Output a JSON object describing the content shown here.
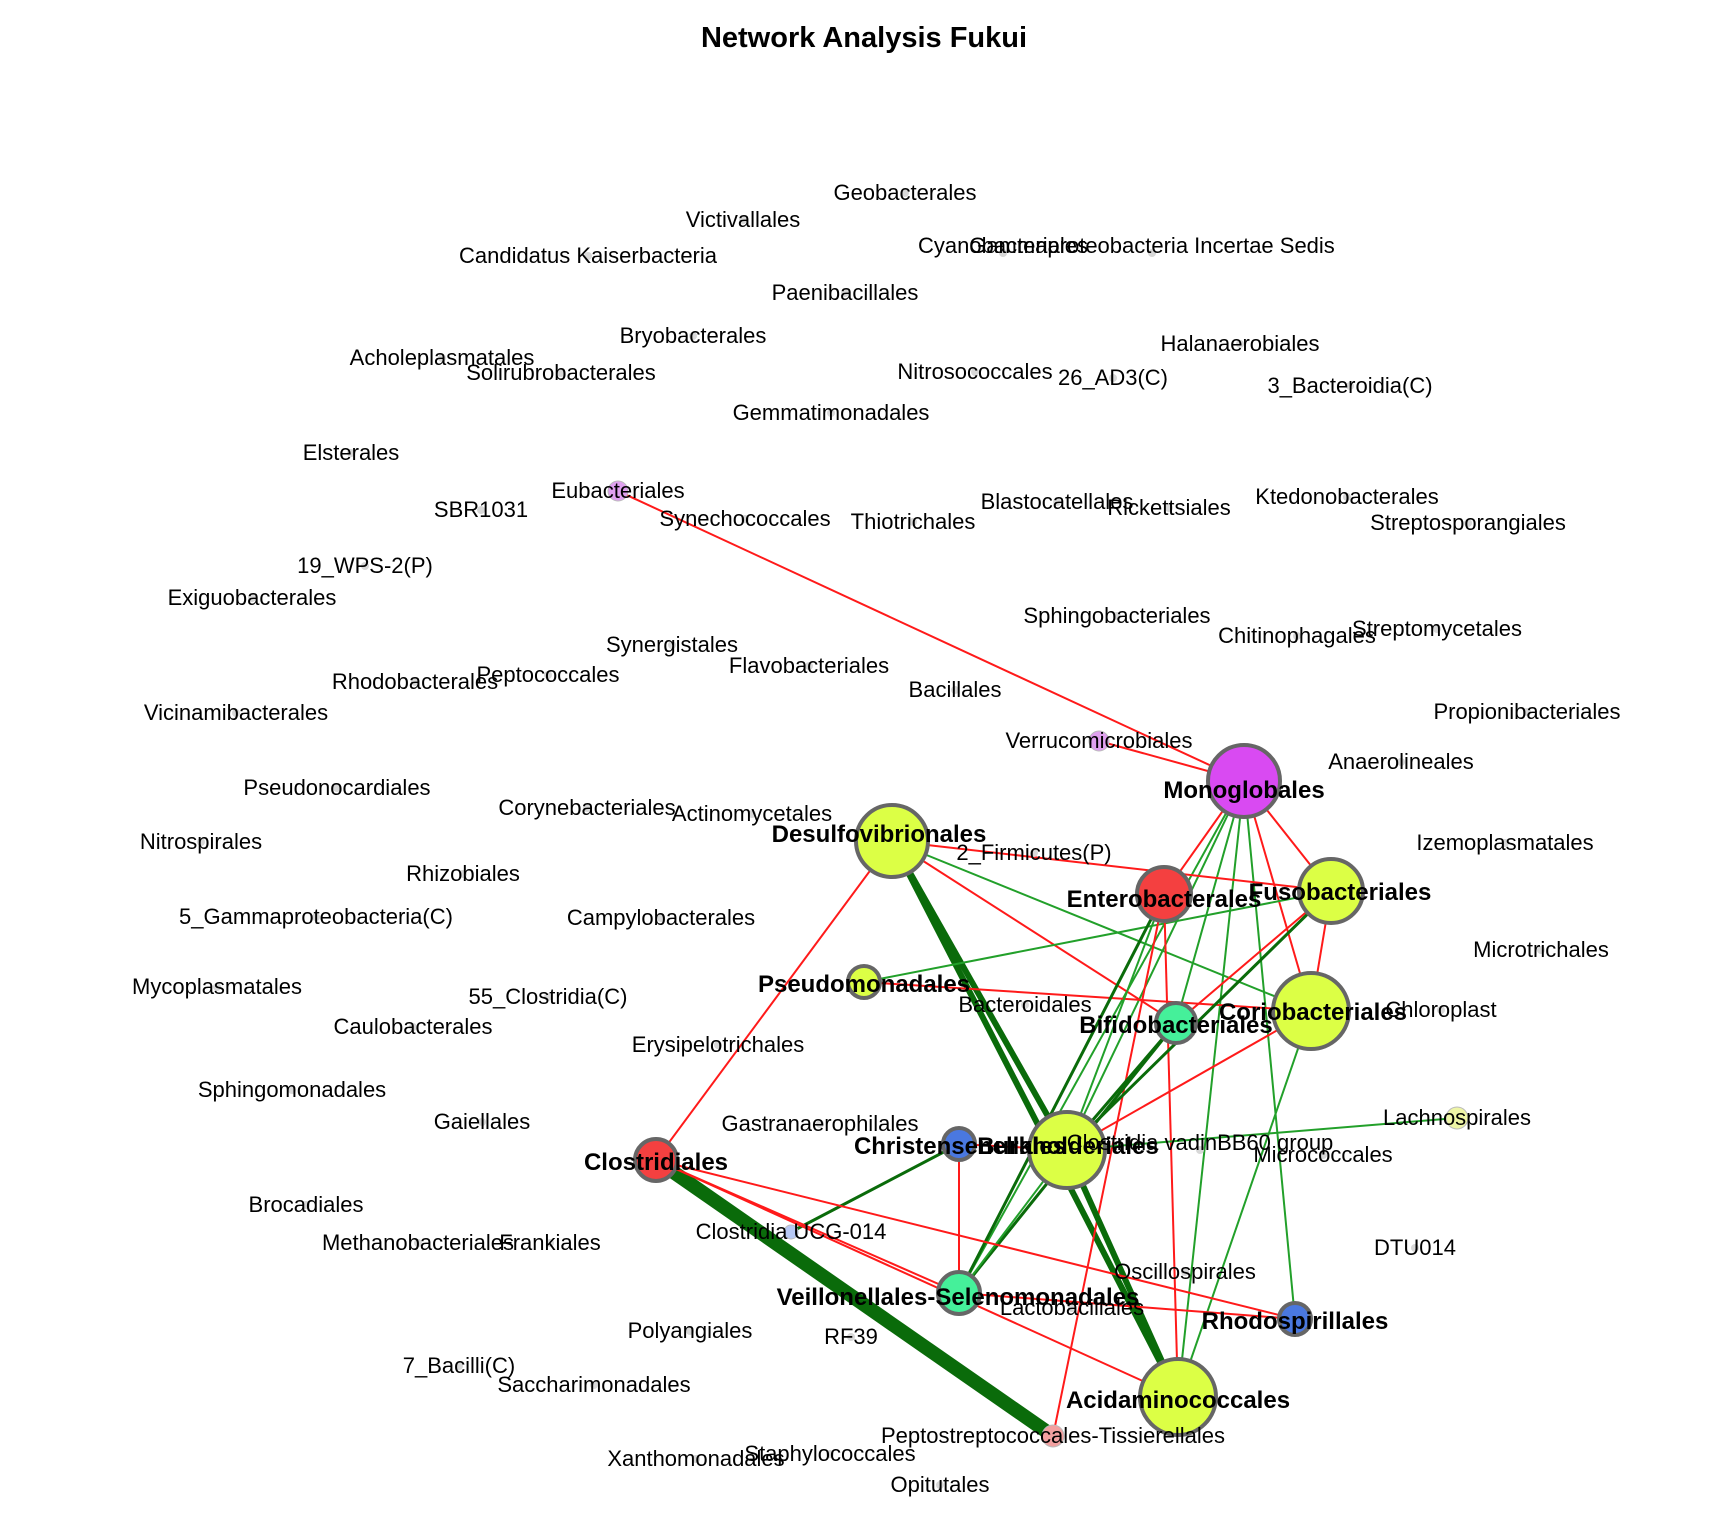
{
  "title": "Network Analysis Fukui",
  "colors": {
    "positive_edge_light": "#22a02a",
    "positive_edge_dark": "#0a6b0a",
    "negative_edge": "#ff1a1a",
    "hub_yellow": "#dcff45",
    "hub_red": "#f44040",
    "hub_green": "#45f09a",
    "hub_blue": "#4a78e0",
    "hub_purple": "#d94af2",
    "minor_node": "#d8d8d8",
    "node_outline": "#666666"
  },
  "nodes": [
    {
      "id": "Geobacterales",
      "label": "Geobacterales",
      "hub": false
    },
    {
      "id": "Victivallales",
      "label": "Victivallales",
      "hub": false
    },
    {
      "id": "Candidatus Kaiserbacteria",
      "label": "Candidatus Kaiserbacteria",
      "hub": false
    },
    {
      "id": "Cyanobacteriales",
      "label": "Cyanobacteriales",
      "hub": false
    },
    {
      "id": "Gammaproteobacteria Incertae Sedis",
      "label": "Gammaproteobacteria Incertae Sedis",
      "hub": false
    },
    {
      "id": "Paenibacillales",
      "label": "Paenibacillales",
      "hub": false
    },
    {
      "id": "Bryobacterales",
      "label": "Bryobacterales",
      "hub": false
    },
    {
      "id": "Halanaerobiales",
      "label": "Halanaerobiales",
      "hub": false
    },
    {
      "id": "Acholeplasmatales",
      "label": "Acholeplasmatales",
      "hub": false
    },
    {
      "id": "Solirubrobacterales",
      "label": "Solirubrobacterales",
      "hub": false
    },
    {
      "id": "Nitrosococcales",
      "label": "Nitrosococcales",
      "hub": false
    },
    {
      "id": "26_AD3(C)",
      "label": "26_AD3(C)",
      "hub": false
    },
    {
      "id": "3_Bacteroidia(C)",
      "label": "3_Bacteroidia(C)",
      "hub": false
    },
    {
      "id": "Gemmatimonadales",
      "label": "Gemmatimonadales",
      "hub": false
    },
    {
      "id": "Elsterales",
      "label": "Elsterales",
      "hub": false
    },
    {
      "id": "Eubacteriales",
      "label": "Eubacteriales",
      "hub": false,
      "color": "#dfa0ef"
    },
    {
      "id": "SBR1031",
      "label": "SBR1031",
      "hub": false
    },
    {
      "id": "Synechococcales",
      "label": "Synechococcales",
      "hub": false
    },
    {
      "id": "Thiotrichales",
      "label": "Thiotrichales",
      "hub": false
    },
    {
      "id": "Blastocatellales",
      "label": "Blastocatellales",
      "hub": false
    },
    {
      "id": "Rickettsiales",
      "label": "Rickettsiales",
      "hub": false
    },
    {
      "id": "Ktedonobacterales",
      "label": "Ktedonobacterales",
      "hub": false
    },
    {
      "id": "Streptosporangiales",
      "label": "Streptosporangiales",
      "hub": false
    },
    {
      "id": "19_WPS-2(P)",
      "label": "19_WPS-2(P)",
      "hub": false
    },
    {
      "id": "Exiguobacterales",
      "label": "Exiguobacterales",
      "hub": false
    },
    {
      "id": "Sphingobacteriales",
      "label": "Sphingobacteriales",
      "hub": false
    },
    {
      "id": "Chitinophagales",
      "label": "Chitinophagales",
      "hub": false
    },
    {
      "id": "Streptomycetales",
      "label": "Streptomycetales",
      "hub": false
    },
    {
      "id": "Synergistales",
      "label": "Synergistales",
      "hub": false
    },
    {
      "id": "Rhodobacterales",
      "label": "Rhodobacterales",
      "hub": false
    },
    {
      "id": "Peptococcales",
      "label": "Peptococcales",
      "hub": false
    },
    {
      "id": "Flavobacteriales",
      "label": "Flavobacteriales",
      "hub": false
    },
    {
      "id": "Bacillales",
      "label": "Bacillales",
      "hub": false
    },
    {
      "id": "Vicinamibacterales",
      "label": "Vicinamibacterales",
      "hub": false
    },
    {
      "id": "Propionibacteriales",
      "label": "Propionibacteriales",
      "hub": false
    },
    {
      "id": "Verrucomicrobiales",
      "label": "Verrucomicrobiales",
      "hub": false,
      "color": "#dfa0ef"
    },
    {
      "id": "Anaerolineales",
      "label": "Anaerolineales",
      "hub": false
    },
    {
      "id": "Pseudonocardiales",
      "label": "Pseudonocardiales",
      "hub": false
    },
    {
      "id": "Corynebacteriales",
      "label": "Corynebacteriales",
      "hub": false
    },
    {
      "id": "Actinomycetales",
      "label": "Actinomycetales",
      "hub": false
    },
    {
      "id": "Nitrospirales",
      "label": "Nitrospirales",
      "hub": false
    },
    {
      "id": "Izemoplasmatales",
      "label": "Izemoplasmatales",
      "hub": false
    },
    {
      "id": "2_Firmicutes(P)",
      "label": "2_Firmicutes(P)",
      "hub": false
    },
    {
      "id": "Rhizobiales",
      "label": "Rhizobiales",
      "hub": false
    },
    {
      "id": "5_Gammaproteobacteria(C)",
      "label": "5_Gammaproteobacteria(C)",
      "hub": false
    },
    {
      "id": "Campylobacterales",
      "label": "Campylobacterales",
      "hub": false
    },
    {
      "id": "Microtrichales",
      "label": "Microtrichales",
      "hub": false
    },
    {
      "id": "Mycoplasmatales",
      "label": "Mycoplasmatales",
      "hub": false
    },
    {
      "id": "55_Clostridia(C)",
      "label": "55_Clostridia(C)",
      "hub": false
    },
    {
      "id": "Caulobacterales",
      "label": "Caulobacterales",
      "hub": false
    },
    {
      "id": "Bacteroidales",
      "label": "Bacteroidales",
      "hub": false
    },
    {
      "id": "Chloroplast",
      "label": "Chloroplast",
      "hub": false
    },
    {
      "id": "Erysipelotrichales",
      "label": "Erysipelotrichales",
      "hub": false
    },
    {
      "id": "Sphingomonadales",
      "label": "Sphingomonadales",
      "hub": false
    },
    {
      "id": "Gaiellales",
      "label": "Gaiellales",
      "hub": false
    },
    {
      "id": "Gastranaerophilales",
      "label": "Gastranaerophilales",
      "hub": false
    },
    {
      "id": "Lachnospirales",
      "label": "Lachnospirales",
      "hub": false,
      "color": "#eef5a6"
    },
    {
      "id": "Micrococcales",
      "label": "Micrococcales",
      "hub": false
    },
    {
      "id": "Clostridia vadinBB60 group",
      "label": "Clostridia vadinBB60 group",
      "hub": false
    },
    {
      "id": "Brocadiales",
      "label": "Brocadiales",
      "hub": false
    },
    {
      "id": "Methanobacteriales",
      "label": "Methanobacteriales",
      "hub": false
    },
    {
      "id": "Frankiales",
      "label": "Frankiales",
      "hub": false
    },
    {
      "id": "Clostridia UCG-014",
      "label": "Clostridia UCG-014",
      "hub": false,
      "color": "#b7c8f4"
    },
    {
      "id": "DTU014",
      "label": "DTU014",
      "hub": false
    },
    {
      "id": "Oscillospirales",
      "label": "Oscillospirales",
      "hub": false
    },
    {
      "id": "Lactobacillales",
      "label": "Lactobacillales",
      "hub": false
    },
    {
      "id": "Polyangiales",
      "label": "Polyangiales",
      "hub": false
    },
    {
      "id": "RF39",
      "label": "RF39",
      "hub": false
    },
    {
      "id": "7_Bacilli(C)",
      "label": "7_Bacilli(C)",
      "hub": false
    },
    {
      "id": "Saccharimonadales",
      "label": "Saccharimonadales",
      "hub": false
    },
    {
      "id": "Peptostreptococcales-Tissierellales",
      "label": "Peptostreptococcales-Tissierellales",
      "hub": false,
      "color": "#f2a0a0"
    },
    {
      "id": "Xanthomonadales",
      "label": "Xanthomonadales",
      "hub": false
    },
    {
      "id": "Staphylococcales",
      "label": "Staphylococcales",
      "hub": false
    },
    {
      "id": "Opitutales",
      "label": "Opitutales",
      "hub": false
    },
    {
      "id": "Monoglobales",
      "label": "Monoglobales",
      "hub": true,
      "color": "#d94af2"
    },
    {
      "id": "Desulfovibrionales",
      "label": "Desulfovibrionales",
      "hub": true,
      "color": "#dcff45"
    },
    {
      "id": "Enterobacterales",
      "label": "Enterobacterales",
      "hub": true,
      "color": "#f44040"
    },
    {
      "id": "Fusobacteriales",
      "label": "Fusobacteriales",
      "hub": true,
      "color": "#dcff45"
    },
    {
      "id": "Pseudomonadales",
      "label": "Pseudomonadales",
      "hub": true,
      "color": "#dcff45"
    },
    {
      "id": "Coriobacteriales",
      "label": "Coriobacteriales",
      "hub": true,
      "color": "#dcff45"
    },
    {
      "id": "Bifidobacteriales",
      "label": "Bifidobacteriales",
      "hub": true,
      "color": "#45f09a"
    },
    {
      "id": "Christensenellales",
      "label": "Christensenellales",
      "hub": true,
      "color": "#4a78e0"
    },
    {
      "id": "Burkholderiales",
      "label": "Burkholderiales",
      "hub": true,
      "color": "#dcff45"
    },
    {
      "id": "Clostridiales",
      "label": "Clostridiales",
      "hub": true,
      "color": "#f44040"
    },
    {
      "id": "Veillonellales-Selenomonadales",
      "label": "Veillonellales-Selenomonadales",
      "hub": true,
      "color": "#45f09a"
    },
    {
      "id": "Rhodospirillales",
      "label": "Rhodospirillales",
      "hub": true,
      "color": "#4a78e0"
    },
    {
      "id": "Acidaminococcales",
      "label": "Acidaminococcales",
      "hub": true,
      "color": "#dcff45"
    }
  ],
  "edges": [
    {
      "source": "Eubacteriales",
      "target": "Monoglobales",
      "sign": "negative"
    },
    {
      "source": "Verrucomicrobiales",
      "target": "Monoglobales",
      "sign": "negative"
    },
    {
      "source": "Monoglobales",
      "target": "Enterobacterales",
      "sign": "negative"
    },
    {
      "source": "Monoglobales",
      "target": "Fusobacteriales",
      "sign": "negative"
    },
    {
      "source": "Monoglobales",
      "target": "Coriobacteriales",
      "sign": "negative"
    },
    {
      "source": "Monoglobales",
      "target": "Bifidobacteriales",
      "sign": "positive"
    },
    {
      "source": "Monoglobales",
      "target": "Burkholderiales",
      "sign": "positive"
    },
    {
      "source": "Monoglobales",
      "target": "Veillonellales-Selenomonadales",
      "sign": "positive"
    },
    {
      "source": "Monoglobales",
      "target": "Rhodospirillales",
      "sign": "positive"
    },
    {
      "source": "Monoglobales",
      "target": "Acidaminococcales",
      "sign": "positive"
    },
    {
      "source": "Desulfovibrionales",
      "target": "Burkholderiales",
      "sign": "positive"
    },
    {
      "source": "Desulfovibrionales",
      "target": "Acidaminococcales",
      "sign": "positive"
    },
    {
      "source": "Desulfovibrionales",
      "target": "Clostridiales",
      "sign": "negative"
    },
    {
      "source": "Desulfovibrionales",
      "target": "Fusobacteriales",
      "sign": "negative"
    },
    {
      "source": "Desulfovibrionales",
      "target": "Coriobacteriales",
      "sign": "positive"
    },
    {
      "source": "Desulfovibrionales",
      "target": "Bifidobacteriales",
      "sign": "negative"
    },
    {
      "source": "Pseudomonadales",
      "target": "Fusobacteriales",
      "sign": "positive"
    },
    {
      "source": "Pseudomonadales",
      "target": "Coriobacteriales",
      "sign": "negative"
    },
    {
      "source": "Enterobacterales",
      "target": "Veillonellales-Selenomonadales",
      "sign": "positive"
    },
    {
      "source": "Enterobacterales",
      "target": "Peptostreptococcales-Tissierellales",
      "sign": "negative"
    },
    {
      "source": "Enterobacterales",
      "target": "Acidaminococcales",
      "sign": "negative"
    },
    {
      "source": "Enterobacterales",
      "target": "Burkholderiales",
      "sign": "positive"
    },
    {
      "source": "Fusobacteriales",
      "target": "Coriobacteriales",
      "sign": "negative"
    },
    {
      "source": "Fusobacteriales",
      "target": "Burkholderiales",
      "sign": "positive"
    },
    {
      "source": "Fusobacteriales",
      "target": "Bifidobacteriales",
      "sign": "negative"
    },
    {
      "source": "Coriobacteriales",
      "target": "Acidaminococcales",
      "sign": "positive"
    },
    {
      "source": "Coriobacteriales",
      "target": "Burkholderiales",
      "sign": "negative"
    },
    {
      "source": "Bifidobacteriales",
      "target": "Burkholderiales",
      "sign": "positive"
    },
    {
      "source": "Bifidobacteriales",
      "target": "Veillonellales-Selenomonadales",
      "sign": "positive"
    },
    {
      "source": "Christensenellales",
      "target": "Burkholderiales",
      "sign": "negative"
    },
    {
      "source": "Christensenellales",
      "target": "Clostridia UCG-014",
      "sign": "positive"
    },
    {
      "source": "Christensenellales",
      "target": "Veillonellales-Selenomonadales",
      "sign": "negative"
    },
    {
      "source": "Burkholderiales",
      "target": "Lachnospirales",
      "sign": "positive"
    },
    {
      "source": "Burkholderiales",
      "target": "Acidaminococcales",
      "sign": "positive"
    },
    {
      "source": "Burkholderiales",
      "target": "Veillonellales-Selenomonadales",
      "sign": "positive"
    },
    {
      "source": "Clostridiales",
      "target": "Peptostreptococcales-Tissierellales",
      "sign": "positive",
      "weight": "strong"
    },
    {
      "source": "Clostridiales",
      "target": "Rhodospirillales",
      "sign": "negative"
    },
    {
      "source": "Clostridiales",
      "target": "Veillonellales-Selenomonadales",
      "sign": "negative"
    },
    {
      "source": "Clostridiales",
      "target": "Acidaminococcales",
      "sign": "negative"
    },
    {
      "source": "Veillonellales-Selenomonadales",
      "target": "Rhodospirillales",
      "sign": "negative"
    }
  ]
}
